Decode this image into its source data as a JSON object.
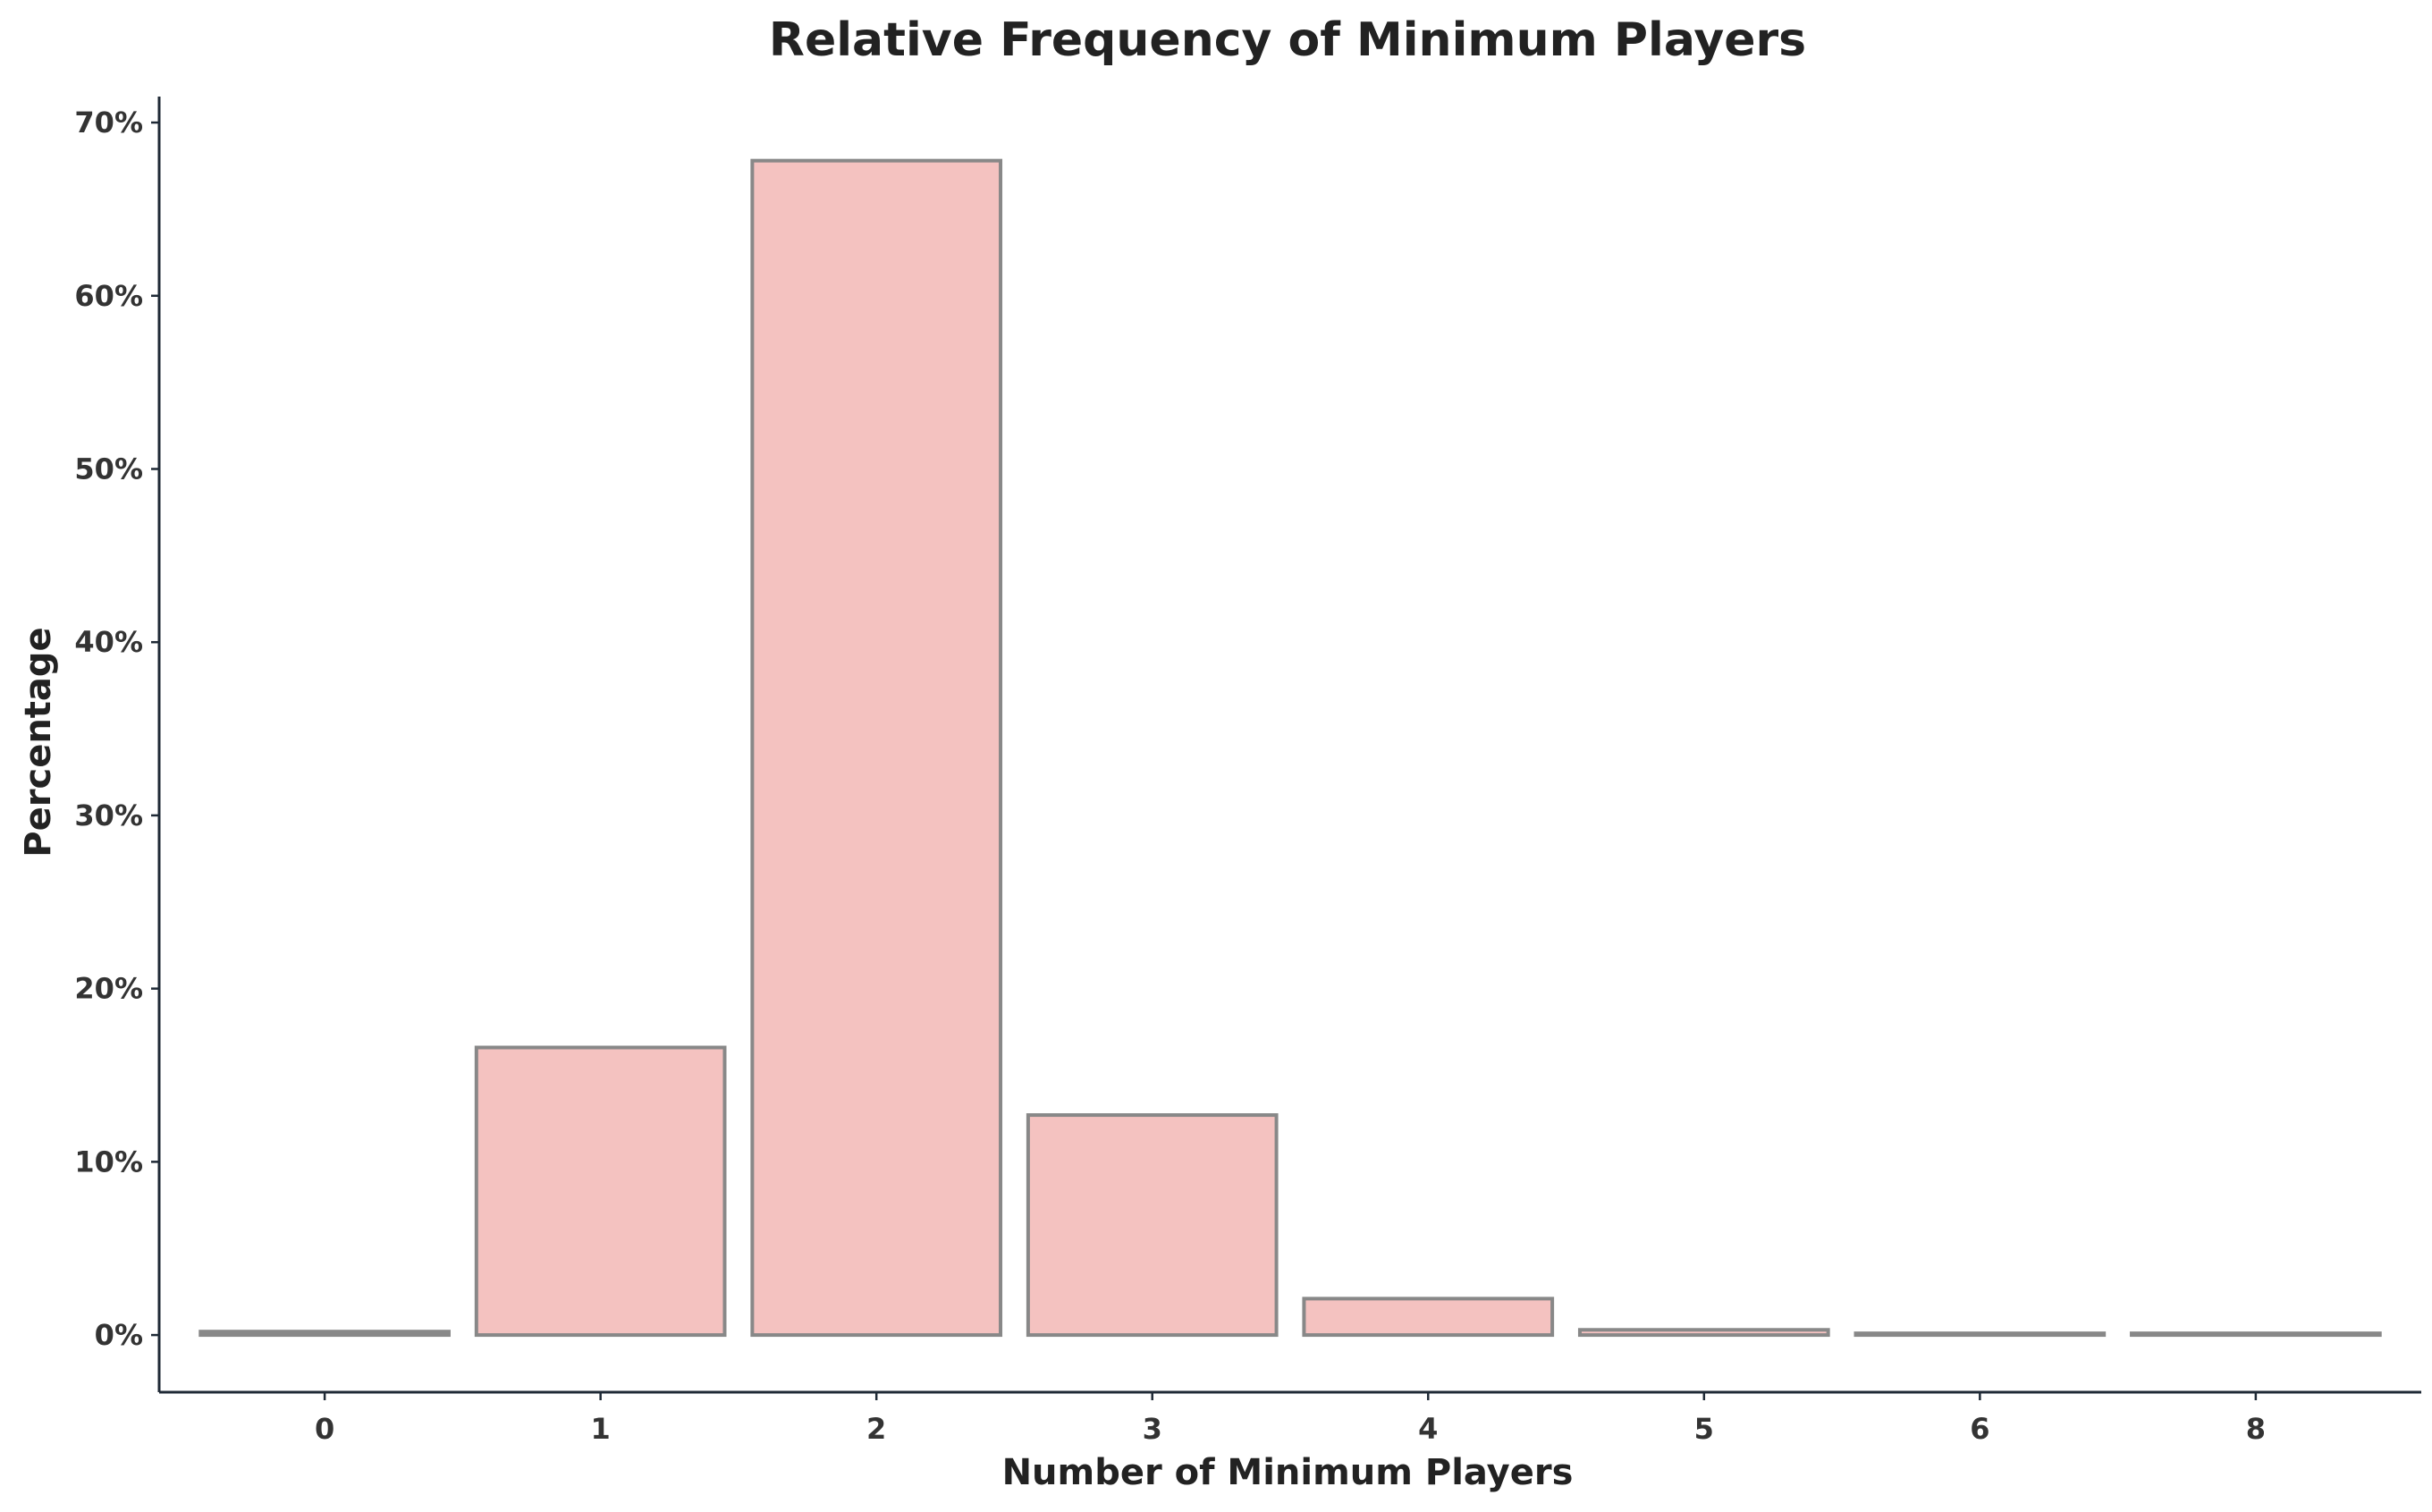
{
  "chart_data": {
    "type": "bar",
    "title": "Relative Frequency of Minimum Players",
    "xlabel": "Number of Minimum Players",
    "ylabel": "Percentage",
    "categories": [
      "0",
      "1",
      "2",
      "3",
      "4",
      "5",
      "6",
      "8"
    ],
    "values": [
      0.2,
      16.6,
      67.8,
      12.7,
      2.1,
      0.3,
      0.1,
      0.1
    ],
    "ylim": [
      -3.3,
      71.5
    ],
    "yticks": [
      0,
      10,
      20,
      30,
      40,
      50,
      60,
      70
    ],
    "ytick_labels": [
      "0%",
      "10%",
      "20%",
      "30%",
      "40%",
      "50%",
      "60%",
      "70%"
    ],
    "grid": false,
    "colors": {
      "bar_fill": "#f4c2c0",
      "bar_edge": "#888888",
      "axis": "#1f2a36"
    }
  }
}
